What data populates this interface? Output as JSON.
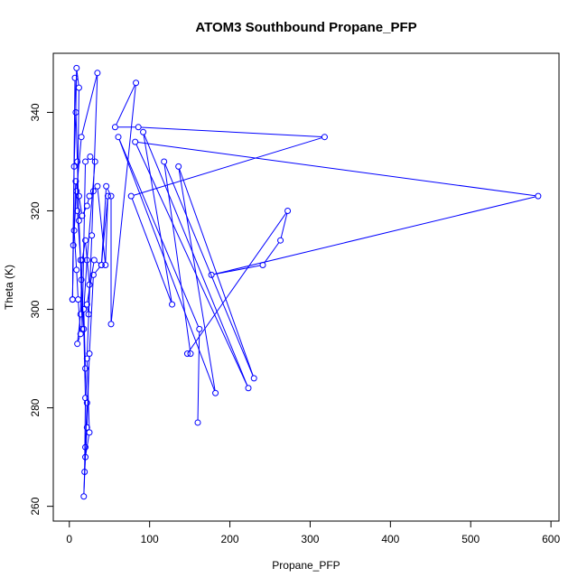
{
  "chart_data": {
    "type": "scatter",
    "title": "ATOM3 Southbound Propane_PFP",
    "xlabel": "Propane_PFP",
    "ylabel": "Theta (K)",
    "xlim": [
      -20,
      610
    ],
    "ylim": [
      257,
      352
    ],
    "xticks": [
      0,
      100,
      200,
      300,
      400,
      500,
      600
    ],
    "yticks": [
      260,
      280,
      300,
      320,
      340
    ],
    "color": "#0000ff",
    "marker": "open-circle",
    "connected": true,
    "points": [
      {
        "x": 4,
        "y": 302
      },
      {
        "x": 6,
        "y": 329
      },
      {
        "x": 8,
        "y": 340
      },
      {
        "x": 9,
        "y": 349
      },
      {
        "x": 12,
        "y": 345
      },
      {
        "x": 10,
        "y": 320
      },
      {
        "x": 14,
        "y": 310
      },
      {
        "x": 16,
        "y": 296
      },
      {
        "x": 20,
        "y": 330
      },
      {
        "x": 26,
        "y": 331
      },
      {
        "x": 32,
        "y": 330
      },
      {
        "x": 22,
        "y": 310
      },
      {
        "x": 18,
        "y": 300
      },
      {
        "x": 20,
        "y": 288
      },
      {
        "x": 22,
        "y": 281
      },
      {
        "x": 20,
        "y": 272
      },
      {
        "x": 18,
        "y": 262
      },
      {
        "x": 20,
        "y": 270
      },
      {
        "x": 25,
        "y": 275
      },
      {
        "x": 22,
        "y": 290
      },
      {
        "x": 28,
        "y": 315
      },
      {
        "x": 35,
        "y": 348
      },
      {
        "x": 15,
        "y": 335
      },
      {
        "x": 9,
        "y": 324
      },
      {
        "x": 5,
        "y": 313
      },
      {
        "x": 4,
        "y": 302
      },
      {
        "x": 7,
        "y": 347
      },
      {
        "x": 10,
        "y": 330
      },
      {
        "x": 12,
        "y": 318
      },
      {
        "x": 15,
        "y": 306
      },
      {
        "x": 18,
        "y": 296
      },
      {
        "x": 20,
        "y": 282
      },
      {
        "x": 19,
        "y": 267
      },
      {
        "x": 22,
        "y": 276
      },
      {
        "x": 25,
        "y": 291
      },
      {
        "x": 30,
        "y": 307
      },
      {
        "x": 40,
        "y": 309
      },
      {
        "x": 48,
        "y": 323
      },
      {
        "x": 45,
        "y": 309
      },
      {
        "x": 35,
        "y": 325
      },
      {
        "x": 30,
        "y": 324
      },
      {
        "x": 25,
        "y": 323
      },
      {
        "x": 22,
        "y": 321
      },
      {
        "x": 16,
        "y": 319
      },
      {
        "x": 12,
        "y": 323
      },
      {
        "x": 8,
        "y": 326
      },
      {
        "x": 6,
        "y": 316
      },
      {
        "x": 9,
        "y": 308
      },
      {
        "x": 11,
        "y": 302
      },
      {
        "x": 14,
        "y": 295
      },
      {
        "x": 10,
        "y": 293
      },
      {
        "x": 14,
        "y": 299
      },
      {
        "x": 16,
        "y": 310
      },
      {
        "x": 20,
        "y": 314
      },
      {
        "x": 25,
        "y": 305
      },
      {
        "x": 24,
        "y": 299
      },
      {
        "x": 22,
        "y": 301
      },
      {
        "x": 31,
        "y": 310
      },
      {
        "x": 40,
        "y": 309
      },
      {
        "x": 46,
        "y": 325
      },
      {
        "x": 52,
        "y": 323
      },
      {
        "x": 52,
        "y": 297
      },
      {
        "x": 83,
        "y": 346
      },
      {
        "x": 57,
        "y": 337
      },
      {
        "x": 86,
        "y": 337
      },
      {
        "x": 318,
        "y": 335
      },
      {
        "x": 77,
        "y": 323
      },
      {
        "x": 128,
        "y": 301
      },
      {
        "x": 92,
        "y": 336
      },
      {
        "x": 223,
        "y": 284
      },
      {
        "x": 82,
        "y": 334
      },
      {
        "x": 584,
        "y": 323
      },
      {
        "x": 177,
        "y": 307
      },
      {
        "x": 241,
        "y": 309
      },
      {
        "x": 263,
        "y": 314
      },
      {
        "x": 272,
        "y": 320
      },
      {
        "x": 147,
        "y": 291
      },
      {
        "x": 151,
        "y": 291
      },
      {
        "x": 118,
        "y": 330
      },
      {
        "x": 230,
        "y": 286
      },
      {
        "x": 136,
        "y": 329
      },
      {
        "x": 182,
        "y": 283
      },
      {
        "x": 61,
        "y": 335
      },
      {
        "x": 162,
        "y": 296
      },
      {
        "x": 160,
        "y": 277
      }
    ]
  }
}
